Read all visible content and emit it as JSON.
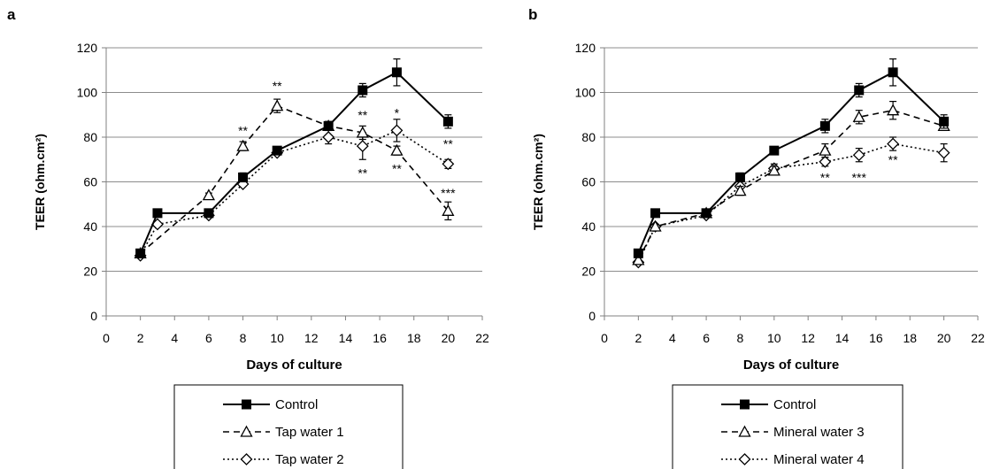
{
  "figure": {
    "panels": [
      {
        "label": "a",
        "legend": [
          "Control",
          "Tap water 1",
          "Tap water 2"
        ]
      },
      {
        "label": "b",
        "legend": [
          "Control",
          "Mineral water 3",
          "Mineral water 4"
        ]
      }
    ]
  },
  "chart_data": [
    {
      "type": "line",
      "panel_label": "a",
      "xlabel": "Days of culture",
      "ylabel": "TEER (ohm.cm²)",
      "xlim": [
        0,
        22
      ],
      "ylim": [
        0,
        120
      ],
      "xticks": [
        0,
        2,
        4,
        6,
        8,
        10,
        12,
        14,
        16,
        18,
        20,
        22
      ],
      "yticks": [
        0,
        20,
        40,
        60,
        80,
        100,
        120
      ],
      "grid": "horizontal",
      "legend_position": "bottom",
      "series": [
        {
          "name": "Control",
          "marker": "square",
          "line": "solid",
          "x": [
            2,
            3,
            6,
            8,
            10,
            13,
            15,
            17,
            20
          ],
          "y": [
            28,
            46,
            46,
            62,
            74,
            85,
            101,
            109,
            87
          ],
          "err": [
            1,
            1,
            1,
            2,
            1,
            2,
            3,
            6,
            3
          ]
        },
        {
          "name": "Tap water 1",
          "marker": "triangle",
          "line": "dashed",
          "x": [
            2,
            6,
            8,
            10,
            13,
            15,
            17,
            20
          ],
          "y": [
            28,
            54,
            76,
            94,
            85,
            82,
            74,
            47
          ],
          "err": [
            1,
            1,
            2,
            3,
            2,
            3,
            2,
            4
          ]
        },
        {
          "name": "Tap water 2",
          "marker": "diamond",
          "line": "dotted",
          "x": [
            2,
            3,
            6,
            8,
            10,
            13,
            15,
            17,
            20
          ],
          "y": [
            27,
            41,
            45,
            59,
            73,
            80,
            76,
            83,
            68
          ],
          "err": [
            1,
            1,
            1,
            1,
            1,
            3,
            6,
            5,
            2
          ]
        }
      ],
      "annotations": [
        {
          "text": "**",
          "x": 8,
          "y": 81
        },
        {
          "text": "**",
          "x": 10,
          "y": 101
        },
        {
          "text": "**",
          "x": 15,
          "y": 88
        },
        {
          "text": "**",
          "x": 15,
          "y": 62
        },
        {
          "text": "*",
          "x": 17,
          "y": 89
        },
        {
          "text": "**",
          "x": 17,
          "y": 64
        },
        {
          "text": "**",
          "x": 20,
          "y": 75
        },
        {
          "text": "***",
          "x": 20,
          "y": 53
        }
      ]
    },
    {
      "type": "line",
      "panel_label": "b",
      "xlabel": "Days of culture",
      "ylabel": "TEER (ohm.cm²)",
      "xlim": [
        0,
        22
      ],
      "ylim": [
        0,
        120
      ],
      "xticks": [
        0,
        2,
        4,
        6,
        8,
        10,
        12,
        14,
        16,
        18,
        20,
        22
      ],
      "yticks": [
        0,
        20,
        40,
        60,
        80,
        100,
        120
      ],
      "grid": "horizontal",
      "legend_position": "bottom",
      "series": [
        {
          "name": "Control",
          "marker": "square",
          "line": "solid",
          "x": [
            2,
            3,
            6,
            8,
            10,
            13,
            15,
            17,
            20
          ],
          "y": [
            28,
            46,
            46,
            62,
            74,
            85,
            101,
            109,
            87
          ],
          "err": [
            1,
            1,
            1,
            2,
            1,
            3,
            3,
            6,
            3
          ]
        },
        {
          "name": "Mineral water 3",
          "marker": "triangle",
          "line": "dashed",
          "x": [
            2,
            3,
            6,
            8,
            10,
            13,
            15,
            17,
            20
          ],
          "y": [
            25,
            40,
            46,
            56,
            65,
            74,
            89,
            92,
            85
          ],
          "err": [
            1,
            1,
            1,
            2,
            2,
            3,
            3,
            4,
            2
          ]
        },
        {
          "name": "Mineral water 4",
          "marker": "diamond",
          "line": "dotted",
          "x": [
            2,
            3,
            6,
            8,
            10,
            13,
            15,
            17,
            20
          ],
          "y": [
            24,
            40,
            45,
            58,
            66,
            69,
            72,
            77,
            73
          ],
          "err": [
            1,
            1,
            1,
            2,
            2,
            2,
            3,
            3,
            4
          ]
        }
      ],
      "annotations": [
        {
          "text": "**",
          "x": 13,
          "y": 60
        },
        {
          "text": "***",
          "x": 15,
          "y": 60
        },
        {
          "text": "**",
          "x": 17,
          "y": 68
        }
      ]
    }
  ]
}
